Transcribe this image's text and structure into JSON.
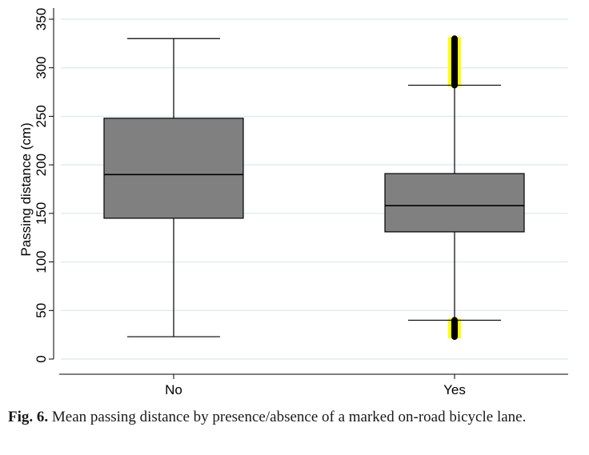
{
  "chart_data": {
    "type": "box",
    "title": "",
    "xlabel": "",
    "ylabel": "Passing distance (cm)",
    "ylim": [
      0,
      360
    ],
    "yticks": [
      0,
      50,
      100,
      150,
      200,
      250,
      300,
      350
    ],
    "grid": true,
    "categories": [
      "No",
      "Yes"
    ],
    "boxes": [
      {
        "category": "No",
        "min": 23,
        "q1": 145,
        "median": 190,
        "q3": 248,
        "max": 330,
        "outliers_low": null,
        "outliers_high": null
      },
      {
        "category": "Yes",
        "min": 40,
        "q1": 131,
        "median": 158,
        "q3": 191,
        "max": 282,
        "outliers_low": [
          23,
          40
        ],
        "outliers_high": [
          282,
          330
        ]
      }
    ],
    "colors": {
      "box_fill": "#808080",
      "line": "#000000",
      "grid": "#dce8ec",
      "outlier_highlight": "#ffff00"
    }
  },
  "caption": {
    "label": "Fig. 6.",
    "text": "Mean passing distance by presence/absence of a marked on-road bicycle lane."
  }
}
